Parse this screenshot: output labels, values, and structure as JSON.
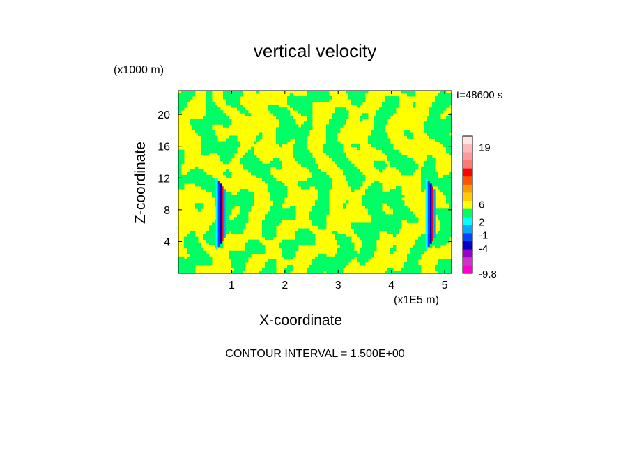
{
  "chart_data": {
    "type": "heatmap",
    "title": "vertical velocity",
    "xlabel": "X-coordinate",
    "ylabel": "Z-coordinate",
    "x_unit_label": "(x1E5 m)",
    "y_unit_label": "(x1000 m)",
    "time_label": "t=48600 s",
    "footer": "CONTOUR INTERVAL = 1.500E+00",
    "xlim": [
      0,
      5.13
    ],
    "ylim": [
      0,
      23
    ],
    "x_ticks": [
      1,
      2,
      3,
      4,
      5
    ],
    "y_ticks": [
      4,
      8,
      12,
      16,
      20
    ],
    "colorbar": {
      "labels": [
        "19",
        "6",
        "2",
        "-1",
        "-4",
        "-9.8"
      ],
      "label_values": [
        19,
        6,
        2,
        -1,
        -4,
        -9.8
      ],
      "range": [
        -9.8,
        21.5
      ],
      "colors": [
        "#ff00cc",
        "#cc33cc",
        "#9900cc",
        "#0000cc",
        "#0044ff",
        "#00aaff",
        "#00ffff",
        "#00ff66",
        "#ffff00",
        "#ffcc00",
        "#ff9900",
        "#ff5500",
        "#ff0000",
        "#ff7777",
        "#ff9999",
        "#ffbbbb",
        "#ffe5e5"
      ]
    },
    "field": {
      "dominant_colors": [
        "#ffff00",
        "#00ff66"
      ],
      "updraft_columns_x": [
        0.78,
        4.72
      ],
      "updraft_z_range": [
        3,
        12
      ]
    }
  }
}
